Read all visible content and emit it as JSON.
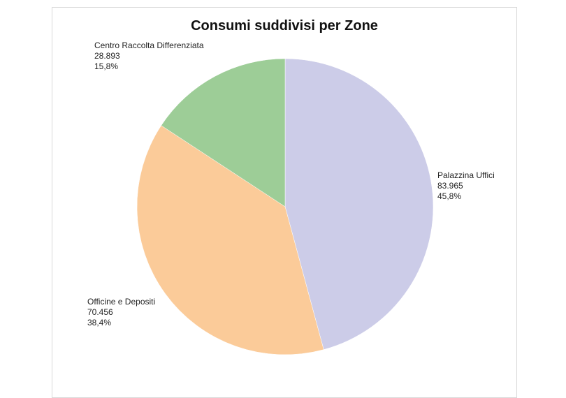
{
  "chart_data": {
    "type": "pie",
    "title": "Consumi suddivisi per Zone",
    "slices": [
      {
        "label": "Palazzina Uffici",
        "value": 83965,
        "value_text": "83.965",
        "percent_text": "45,8%",
        "color": "#cccce8"
      },
      {
        "label": "Officine e Depositi",
        "value": 70456,
        "value_text": "70.456",
        "percent_text": "38,4%",
        "color": "#fbcb99"
      },
      {
        "label": "Centro Raccolta Differenziata",
        "value": 28893,
        "value_text": "28.893",
        "percent_text": "15,8%",
        "color": "#9dcd97"
      }
    ],
    "start_angle_deg": 0,
    "direction": "clockwise",
    "legend": "none"
  }
}
